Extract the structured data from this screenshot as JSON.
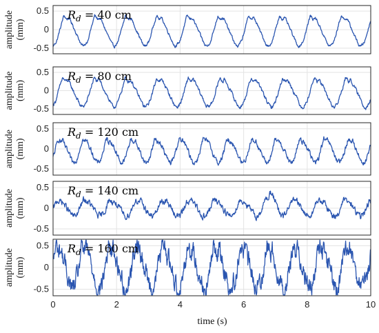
{
  "chart_data": [
    {
      "type": "line",
      "label_prefix": "R",
      "label_sub": "d",
      "label_eq": " = ",
      "label_value": "40 cm",
      "ylabel_top": "amplitude",
      "ylabel_bottom": "(mm)",
      "ylim": [
        -0.65,
        0.65
      ],
      "yticks": [
        "0.5",
        "0",
        "-0.5"
      ],
      "ytick_values": [
        0.5,
        0,
        -0.5
      ],
      "xlim": [
        0,
        10
      ],
      "grid": true,
      "period_s": 0.97,
      "peak": 0.38,
      "trough": -0.45,
      "noise": 0.03
    },
    {
      "type": "line",
      "label_prefix": "R",
      "label_sub": "d",
      "label_eq": " = ",
      "label_value": "80 cm",
      "ylabel_top": "amplitude",
      "ylabel_bottom": "(mm)",
      "ylim": [
        -0.65,
        0.65
      ],
      "yticks": [
        "0.5",
        "0",
        "-0.5"
      ],
      "ytick_values": [
        0.5,
        0,
        -0.5
      ],
      "xlim": [
        0,
        10
      ],
      "grid": true,
      "period_s": 0.99,
      "peak": 0.35,
      "trough": -0.45,
      "noise": 0.04
    },
    {
      "type": "line",
      "label_prefix": "R",
      "label_sub": "d",
      "label_eq": " = ",
      "label_value": "120 cm",
      "ylabel_top": "amplitude",
      "ylabel_bottom": "(mm)",
      "ylim": [
        -0.65,
        0.65
      ],
      "yticks": [
        "0.5",
        "0",
        "-0.5"
      ],
      "ytick_values": [
        0.5,
        0,
        -0.5
      ],
      "xlim": [
        0,
        10
      ],
      "grid": true,
      "period_s": 0.76,
      "peak": 0.25,
      "trough": -0.35,
      "noise": 0.05
    },
    {
      "type": "line",
      "label_prefix": "R",
      "label_sub": "d",
      "label_eq": " = ",
      "label_value": "140 cm",
      "ylabel_top": "amplitude",
      "ylabel_bottom": "(mm)",
      "ylim": [
        -0.65,
        0.65
      ],
      "yticks": [
        "0.5",
        "0",
        "-0.5"
      ],
      "ytick_values": [
        0.5,
        0,
        -0.5
      ],
      "xlim": [
        0,
        10
      ],
      "grid": true,
      "period_s": 0.82,
      "peak": 0.2,
      "trough": -0.2,
      "noise": 0.06,
      "spike_x": 6.9,
      "spike_y": 0.45
    },
    {
      "type": "line",
      "label_prefix": "R",
      "label_sub": "d",
      "label_eq": " = ",
      "label_value": "160 cm",
      "ylabel_top": "amplitude",
      "ylabel_bottom": "(mm)",
      "ylim": [
        -0.65,
        0.65
      ],
      "yticks": [
        "0.5",
        "0",
        "-0.5"
      ],
      "ytick_values": [
        0.5,
        0,
        -0.5
      ],
      "xlim": [
        0,
        10
      ],
      "grid": true,
      "period_s": 0.83,
      "peak": 0.5,
      "trough": -0.5,
      "noise": 0.18
    }
  ],
  "xaxis": {
    "label": "time (s)",
    "ticks": [
      "0",
      "2",
      "4",
      "6",
      "8",
      "10"
    ],
    "tick_values": [
      0,
      2,
      4,
      6,
      8,
      10
    ]
  },
  "colors": {
    "signal": "#2a55b0",
    "grid": "#e3e3e3",
    "frame": "#262626"
  }
}
